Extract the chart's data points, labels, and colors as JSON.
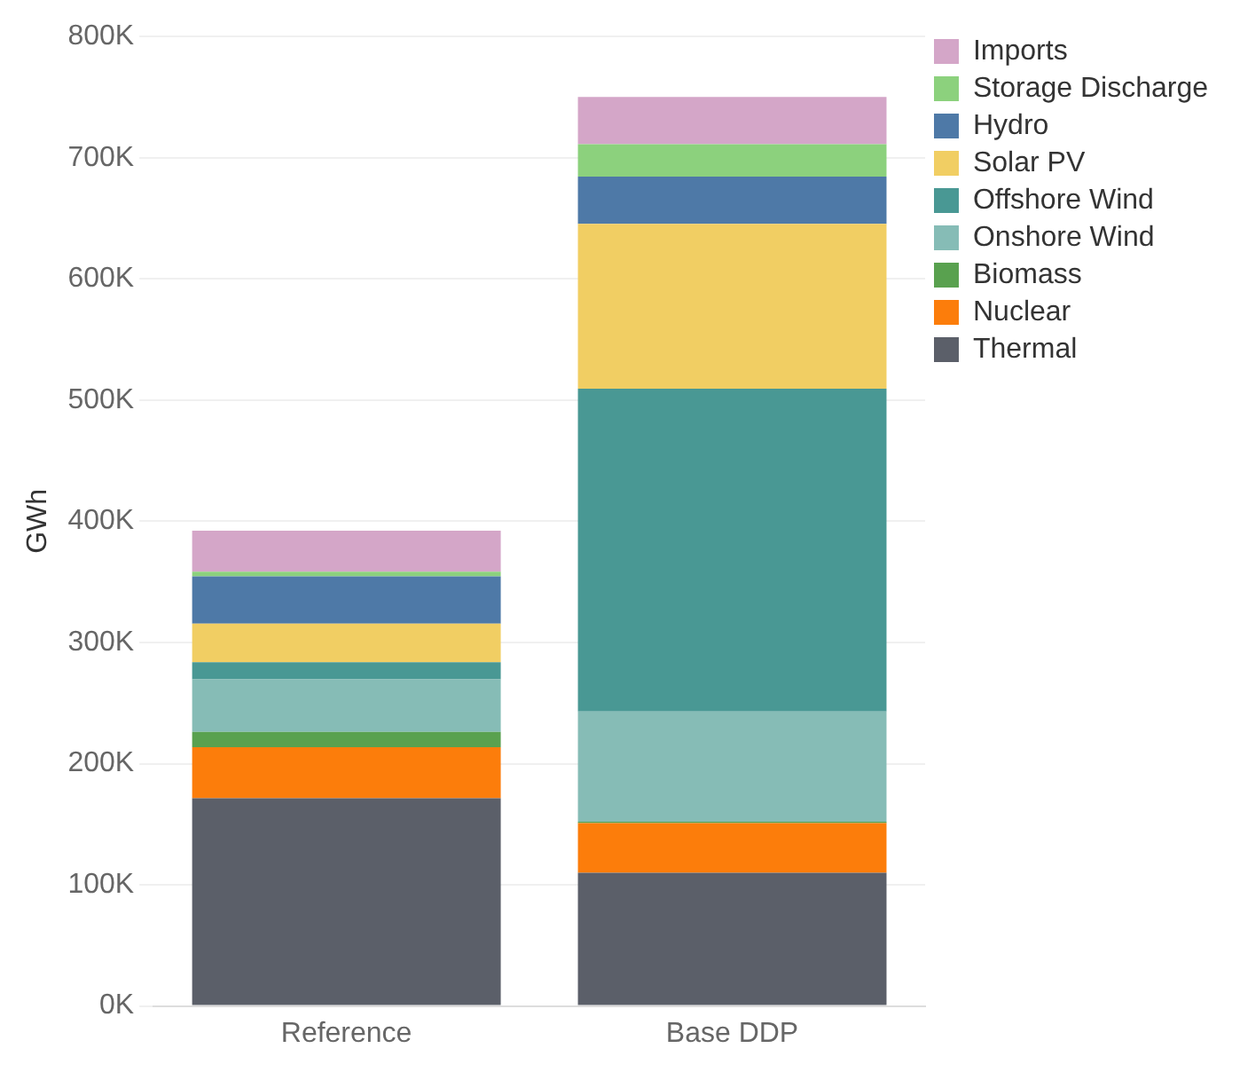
{
  "chart_data": {
    "type": "bar",
    "ylabel": "GWh",
    "categories": [
      "Reference",
      "Base DDP"
    ],
    "stacked": true,
    "legend": "top right",
    "grid": "y",
    "ylim": [
      0,
      800000
    ],
    "yticks": [
      {
        "value": 0,
        "label": "0K"
      },
      {
        "value": 100000,
        "label": "100K"
      },
      {
        "value": 200000,
        "label": "200K"
      },
      {
        "value": 300000,
        "label": "300K"
      },
      {
        "value": 400000,
        "label": "400K"
      },
      {
        "value": 500000,
        "label": "500K"
      },
      {
        "value": 600000,
        "label": "600K"
      },
      {
        "value": 700000,
        "label": "700K"
      },
      {
        "value": 800000,
        "label": "800K"
      }
    ],
    "series": [
      {
        "name": "Thermal",
        "color": "#5b5f69",
        "values": [
          171500,
          110000
        ]
      },
      {
        "name": "Nuclear",
        "color": "#fc7d0b",
        "values": [
          42000,
          41000
        ]
      },
      {
        "name": "Biomass",
        "color": "#59a14f",
        "values": [
          12600,
          1000
        ]
      },
      {
        "name": "Onshore Wind",
        "color": "#86bcb6",
        "values": [
          43500,
          91000
        ]
      },
      {
        "name": "Offshore Wind",
        "color": "#499894",
        "values": [
          14000,
          266500
        ]
      },
      {
        "name": "Solar PV",
        "color": "#f1ce63",
        "values": [
          32000,
          136000
        ]
      },
      {
        "name": "Hydro",
        "color": "#4e79a7",
        "values": [
          39000,
          39000
        ]
      },
      {
        "name": "Storage Discharge",
        "color": "#8cd17d",
        "values": [
          3700,
          26600
        ]
      },
      {
        "name": "Imports",
        "color": "#d4a6c8",
        "values": [
          34000,
          39000
        ]
      }
    ]
  }
}
